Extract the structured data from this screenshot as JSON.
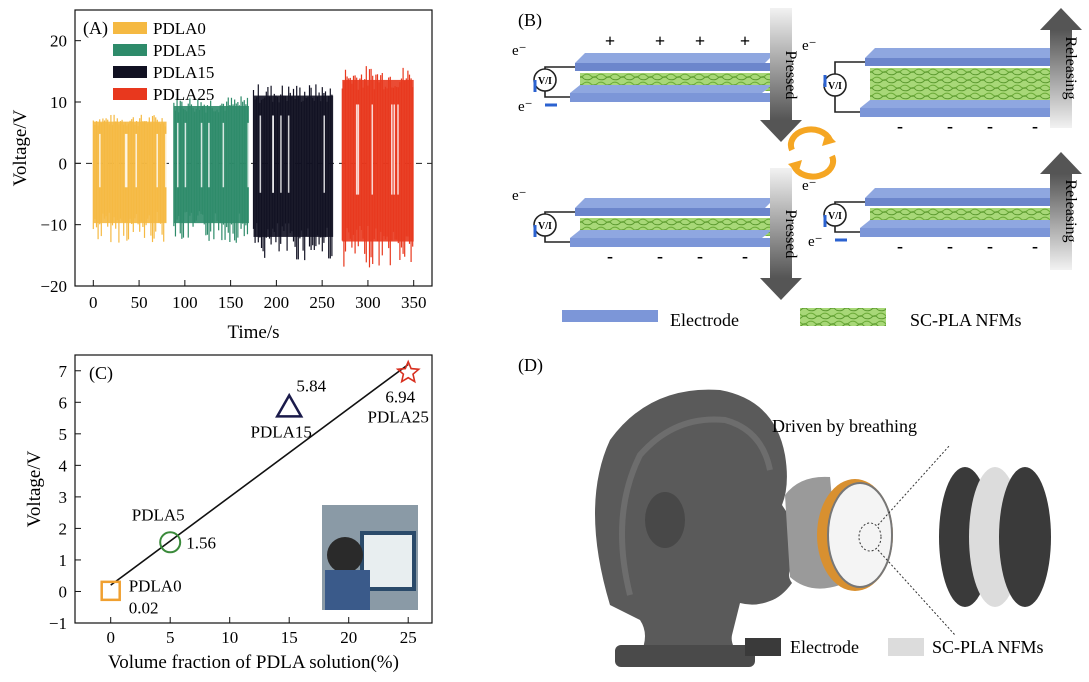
{
  "panel_labels": {
    "A": "(A)",
    "B": "(B)",
    "C": "(C)",
    "D": "(D)"
  },
  "chart_data": [
    {
      "type": "line",
      "panel": "A",
      "xlabel": "Time/s",
      "ylabel": "Voltage/V",
      "xlim": [
        -20,
        370
      ],
      "ylim": [
        -20,
        25
      ],
      "xticks": [
        0,
        50,
        100,
        150,
        200,
        250,
        300,
        350
      ],
      "yticks": [
        -20,
        -10,
        0,
        10,
        20
      ],
      "zero_line": "dashed",
      "legend_position": "top-left",
      "series": [
        {
          "name": "PDLA0",
          "color": "#F5B942",
          "x_range": [
            0,
            80
          ],
          "y_max": 8,
          "y_min": -13
        },
        {
          "name": "PDLA5",
          "color": "#2E8B6A",
          "x_range": [
            88,
            170
          ],
          "y_max": 11,
          "y_min": -13
        },
        {
          "name": "PDLA15",
          "color": "#111122",
          "x_range": [
            175,
            262
          ],
          "y_max": 13,
          "y_min": -16
        },
        {
          "name": "PDLA25",
          "color": "#E8381E",
          "x_range": [
            272,
            350
          ],
          "y_max": 16,
          "y_min": -17
        }
      ]
    },
    {
      "type": "scatter",
      "panel": "C",
      "xlabel": "Volume fraction of PDLA solution(%)",
      "ylabel": "Voltage/V",
      "xlim": [
        -3,
        27
      ],
      "ylim": [
        -1,
        7.5
      ],
      "xticks": [
        0,
        5,
        10,
        15,
        20,
        25
      ],
      "yticks": [
        -1,
        0,
        1,
        2,
        3,
        4,
        5,
        6,
        7
      ],
      "fit_line": {
        "x": [
          0,
          25
        ],
        "y": [
          0.2,
          7.2
        ]
      },
      "points": [
        {
          "x": 0,
          "y": 0.02,
          "name": "PDLA0",
          "value_label": "0.02",
          "marker": "square",
          "color": "#F0A030"
        },
        {
          "x": 5,
          "y": 1.56,
          "name": "PDLA5",
          "value_label": "1.56",
          "marker": "circle",
          "color": "#3A8A3A"
        },
        {
          "x": 15,
          "y": 5.84,
          "name": "PDLA15",
          "value_label": "5.84",
          "marker": "triangle",
          "color": "#1A1A4A"
        },
        {
          "x": 25,
          "y": 6.94,
          "name": "PDLA25",
          "value_label": "6.94",
          "marker": "star",
          "color": "#D83020"
        }
      ]
    }
  ],
  "diagram_b": {
    "pressed": "Pressed",
    "releasing": "Releasing",
    "electron": "e⁻",
    "meter": "V/I",
    "plus": "+",
    "minus": "-",
    "legend_electrode": "Electrode",
    "legend_nfm": "SC-PLA NFMs"
  },
  "illustration_d": {
    "caption": "Driven by breathing",
    "legend_electrode": "Electrode",
    "legend_nfm": "SC-PLA NFMs",
    "colors": {
      "electrode": "#3A3A3A",
      "nfm": "#DCDCDC"
    }
  }
}
